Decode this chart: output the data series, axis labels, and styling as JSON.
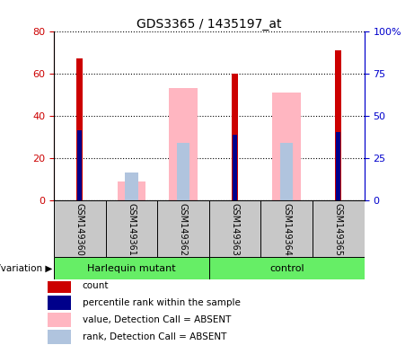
{
  "title": "GDS3365 / 1435197_at",
  "samples": [
    "GSM149360",
    "GSM149361",
    "GSM149362",
    "GSM149363",
    "GSM149364",
    "GSM149365"
  ],
  "red_values": [
    67,
    0,
    0,
    60,
    0,
    71
  ],
  "blue_values": [
    33,
    0,
    0,
    31,
    0,
    32
  ],
  "pink_values": [
    0,
    9,
    53,
    0,
    51,
    0
  ],
  "lavender_values": [
    0,
    13,
    27,
    0,
    27,
    0
  ],
  "left_ylim": [
    0,
    80
  ],
  "right_ylim": [
    0,
    100
  ],
  "left_yticks": [
    0,
    20,
    40,
    60,
    80
  ],
  "right_yticks": [
    0,
    25,
    50,
    75,
    100
  ],
  "right_yticklabels": [
    "0",
    "25",
    "50",
    "75",
    "100%"
  ],
  "left_color": "#CC0000",
  "right_color": "#0000CC",
  "group_green": "#66EE66",
  "sample_gray": "#C8C8C8",
  "legend_items": [
    {
      "label": "count",
      "color": "#CC0000"
    },
    {
      "label": "percentile rank within the sample",
      "color": "#00008B"
    },
    {
      "label": "value, Detection Call = ABSENT",
      "color": "#FFB6C1"
    },
    {
      "label": "rank, Detection Call = ABSENT",
      "color": "#B0C4DE"
    }
  ]
}
